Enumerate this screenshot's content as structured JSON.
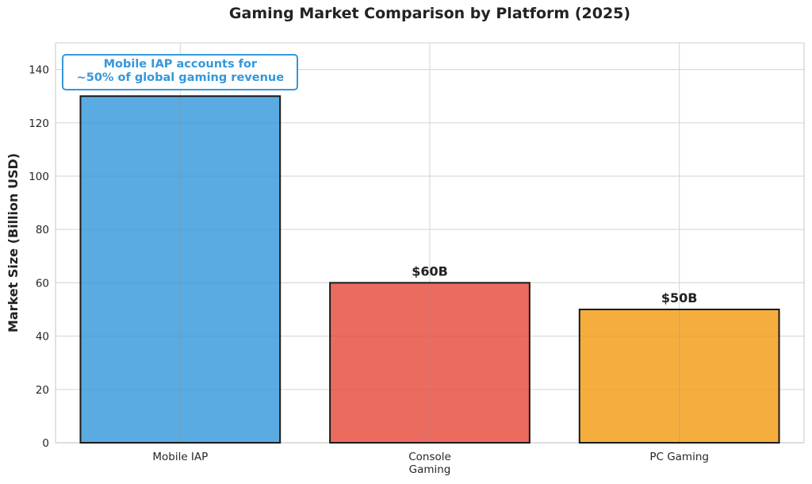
{
  "chart_data": {
    "type": "bar",
    "title": "Gaming Market Comparison by Platform (2025)",
    "xlabel": "",
    "ylabel": "Market Size (Billion USD)",
    "categories": [
      "Mobile IAP",
      "Console Gaming",
      "PC Gaming"
    ],
    "category_labels": [
      [
        "Mobile IAP"
      ],
      [
        "Console",
        "Gaming"
      ],
      [
        "PC Gaming"
      ]
    ],
    "values": [
      130,
      60,
      50
    ],
    "value_labels": [
      "",
      "$60B",
      "$50B"
    ],
    "colors": [
      "#3498db",
      "#e74c3c",
      "#f39c12"
    ],
    "ylim": [
      0,
      150
    ],
    "yticks": [
      0,
      20,
      40,
      60,
      80,
      100,
      120,
      140
    ],
    "grid": true,
    "annotation": {
      "category": "Mobile IAP",
      "lines": [
        "Mobile IAP accounts for",
        "~50% of global gaming revenue"
      ],
      "color": "#3498db"
    }
  }
}
